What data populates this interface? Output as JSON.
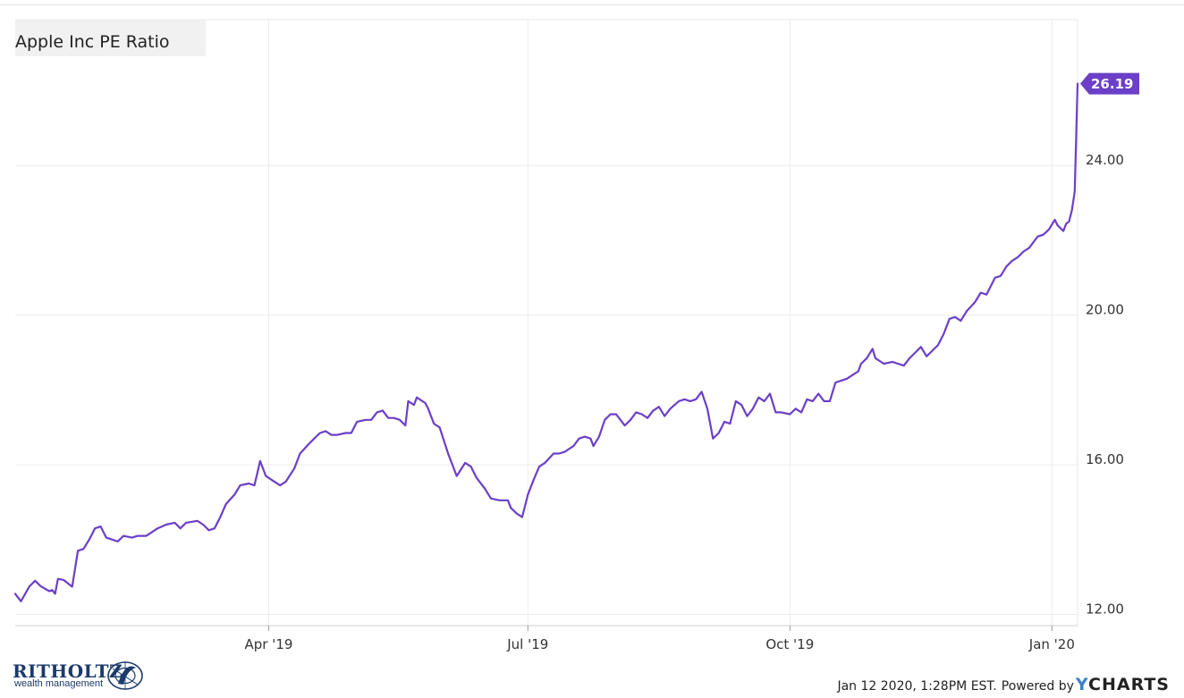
{
  "chart_data": {
    "type": "line",
    "title": "Apple Inc PE Ratio",
    "xlabel": "",
    "ylabel": "",
    "x_tick_labels": [
      {
        "date": "2019-04-01",
        "label": "Apr '19"
      },
      {
        "date": "2019-07-01",
        "label": "Jul '19"
      },
      {
        "date": "2019-10-01",
        "label": "Oct '19"
      },
      {
        "date": "2020-01-01",
        "label": "Jan '20"
      }
    ],
    "y_tick_labels": [
      "12.00",
      "16.00",
      "20.00",
      "24.00"
    ],
    "y_ticks": [
      12,
      16,
      20,
      24
    ],
    "xlim": [
      "2019-01-02",
      "2020-01-10"
    ],
    "ylim": [
      11.7,
      27.9
    ],
    "grid": true,
    "legend": "none",
    "last_value_label": "26.19",
    "series": [
      {
        "color": "#6b3fc7",
        "points": [
          [
            "2019-01-02",
            12.55
          ],
          [
            "2019-01-04",
            12.35
          ],
          [
            "2019-01-07",
            12.75
          ],
          [
            "2019-01-09",
            12.9
          ],
          [
            "2019-01-11",
            12.75
          ],
          [
            "2019-01-14",
            12.62
          ],
          [
            "2019-01-15",
            12.65
          ],
          [
            "2019-01-16",
            12.55
          ],
          [
            "2019-01-17",
            12.95
          ],
          [
            "2019-01-19",
            12.92
          ],
          [
            "2019-01-22",
            12.74
          ],
          [
            "2019-01-24",
            13.7
          ],
          [
            "2019-01-26",
            13.75
          ],
          [
            "2019-01-28",
            14.0
          ],
          [
            "2019-01-30",
            14.3
          ],
          [
            "2019-02-01",
            14.35
          ],
          [
            "2019-02-03",
            14.05
          ],
          [
            "2019-02-07",
            13.95
          ],
          [
            "2019-02-09",
            14.1
          ],
          [
            "2019-02-12",
            14.05
          ],
          [
            "2019-02-14",
            14.1
          ],
          [
            "2019-02-17",
            14.1
          ],
          [
            "2019-02-19",
            14.2
          ],
          [
            "2019-02-21",
            14.3
          ],
          [
            "2019-02-24",
            14.4
          ],
          [
            "2019-02-27",
            14.45
          ],
          [
            "2019-03-01",
            14.3
          ],
          [
            "2019-03-03",
            14.45
          ],
          [
            "2019-03-07",
            14.5
          ],
          [
            "2019-03-09",
            14.4
          ],
          [
            "2019-03-11",
            14.25
          ],
          [
            "2019-03-13",
            14.3
          ],
          [
            "2019-03-15",
            14.6
          ],
          [
            "2019-03-17",
            14.95
          ],
          [
            "2019-03-20",
            15.2
          ],
          [
            "2019-03-22",
            15.45
          ],
          [
            "2019-03-25",
            15.5
          ],
          [
            "2019-03-27",
            15.45
          ],
          [
            "2019-03-29",
            16.1
          ],
          [
            "2019-03-31",
            15.7
          ],
          [
            "2019-04-03",
            15.55
          ],
          [
            "2019-04-05",
            15.45
          ],
          [
            "2019-04-07",
            15.55
          ],
          [
            "2019-04-10",
            15.9
          ],
          [
            "2019-04-12",
            16.3
          ],
          [
            "2019-04-15",
            16.55
          ],
          [
            "2019-04-17",
            16.7
          ],
          [
            "2019-04-19",
            16.85
          ],
          [
            "2019-04-21",
            16.9
          ],
          [
            "2019-04-23",
            16.8
          ],
          [
            "2019-04-25",
            16.8
          ],
          [
            "2019-04-28",
            16.85
          ],
          [
            "2019-04-30",
            16.85
          ],
          [
            "2019-05-02",
            17.15
          ],
          [
            "2019-05-05",
            17.2
          ],
          [
            "2019-05-07",
            17.2
          ],
          [
            "2019-05-09",
            17.4
          ],
          [
            "2019-05-11",
            17.45
          ],
          [
            "2019-05-13",
            17.25
          ],
          [
            "2019-05-15",
            17.25
          ],
          [
            "2019-05-17",
            17.2
          ],
          [
            "2019-05-19",
            17.05
          ],
          [
            "2019-05-20",
            17.7
          ],
          [
            "2019-05-22",
            17.6
          ],
          [
            "2019-05-23",
            17.8
          ],
          [
            "2019-05-26",
            17.65
          ],
          [
            "2019-05-27",
            17.5
          ],
          [
            "2019-05-29",
            17.1
          ],
          [
            "2019-05-31",
            17.0
          ],
          [
            "2019-06-03",
            16.3
          ],
          [
            "2019-06-06",
            15.7
          ],
          [
            "2019-06-09",
            16.05
          ],
          [
            "2019-06-11",
            15.95
          ],
          [
            "2019-06-13",
            15.65
          ],
          [
            "2019-06-16",
            15.35
          ],
          [
            "2019-06-18",
            15.1
          ],
          [
            "2019-06-21",
            15.05
          ],
          [
            "2019-06-24",
            15.05
          ],
          [
            "2019-06-25",
            14.85
          ],
          [
            "2019-06-27",
            14.7
          ],
          [
            "2019-06-29",
            14.6
          ],
          [
            "2019-07-01",
            15.2
          ],
          [
            "2019-07-03",
            15.6
          ],
          [
            "2019-07-05",
            15.95
          ],
          [
            "2019-07-07",
            16.05
          ],
          [
            "2019-07-10",
            16.3
          ],
          [
            "2019-07-12",
            16.3
          ],
          [
            "2019-07-14",
            16.35
          ],
          [
            "2019-07-17",
            16.5
          ],
          [
            "2019-07-19",
            16.7
          ],
          [
            "2019-07-21",
            16.75
          ],
          [
            "2019-07-23",
            16.7
          ],
          [
            "2019-07-24",
            16.5
          ],
          [
            "2019-07-26",
            16.75
          ],
          [
            "2019-07-28",
            17.2
          ],
          [
            "2019-07-30",
            17.35
          ],
          [
            "2019-08-01",
            17.35
          ],
          [
            "2019-08-04",
            17.05
          ],
          [
            "2019-08-06",
            17.2
          ],
          [
            "2019-08-08",
            17.4
          ],
          [
            "2019-08-10",
            17.35
          ],
          [
            "2019-08-12",
            17.25
          ],
          [
            "2019-08-14",
            17.45
          ],
          [
            "2019-08-16",
            17.55
          ],
          [
            "2019-08-18",
            17.3
          ],
          [
            "2019-08-20",
            17.5
          ],
          [
            "2019-08-23",
            17.7
          ],
          [
            "2019-08-25",
            17.75
          ],
          [
            "2019-08-27",
            17.7
          ],
          [
            "2019-08-29",
            17.75
          ],
          [
            "2019-08-31",
            17.95
          ],
          [
            "2019-09-02",
            17.5
          ],
          [
            "2019-09-04",
            16.7
          ],
          [
            "2019-09-06",
            16.85
          ],
          [
            "2019-09-08",
            17.15
          ],
          [
            "2019-09-10",
            17.1
          ],
          [
            "2019-09-12",
            17.7
          ],
          [
            "2019-09-14",
            17.6
          ],
          [
            "2019-09-16",
            17.3
          ],
          [
            "2019-09-18",
            17.5
          ],
          [
            "2019-09-20",
            17.8
          ],
          [
            "2019-09-22",
            17.7
          ],
          [
            "2019-09-24",
            17.9
          ],
          [
            "2019-09-26",
            17.4
          ],
          [
            "2019-09-28",
            17.4
          ],
          [
            "2019-10-01",
            17.35
          ],
          [
            "2019-10-03",
            17.5
          ],
          [
            "2019-10-05",
            17.4
          ],
          [
            "2019-10-07",
            17.75
          ],
          [
            "2019-10-09",
            17.7
          ],
          [
            "2019-10-11",
            17.9
          ],
          [
            "2019-10-13",
            17.7
          ],
          [
            "2019-10-15",
            17.7
          ],
          [
            "2019-10-17",
            18.2
          ],
          [
            "2019-10-19",
            18.25
          ],
          [
            "2019-10-21",
            18.3
          ],
          [
            "2019-10-23",
            18.4
          ],
          [
            "2019-10-25",
            18.5
          ],
          [
            "2019-10-26",
            18.7
          ],
          [
            "2019-10-28",
            18.85
          ],
          [
            "2019-10-30",
            19.1
          ],
          [
            "2019-10-31",
            18.85
          ],
          [
            "2019-11-03",
            18.7
          ],
          [
            "2019-11-06",
            18.75
          ],
          [
            "2019-11-08",
            18.7
          ],
          [
            "2019-11-10",
            18.65
          ],
          [
            "2019-11-12",
            18.85
          ],
          [
            "2019-11-14",
            19.0
          ],
          [
            "2019-11-16",
            19.15
          ],
          [
            "2019-11-18",
            18.9
          ],
          [
            "2019-11-20",
            19.05
          ],
          [
            "2019-11-22",
            19.2
          ],
          [
            "2019-11-24",
            19.5
          ],
          [
            "2019-11-26",
            19.9
          ],
          [
            "2019-11-28",
            19.95
          ],
          [
            "2019-11-30",
            19.85
          ],
          [
            "2019-12-02",
            20.1
          ],
          [
            "2019-12-05",
            20.35
          ],
          [
            "2019-12-07",
            20.6
          ],
          [
            "2019-12-09",
            20.55
          ],
          [
            "2019-12-11",
            20.85
          ],
          [
            "2019-12-12",
            21.0
          ],
          [
            "2019-12-14",
            21.05
          ],
          [
            "2019-12-16",
            21.3
          ],
          [
            "2019-12-18",
            21.45
          ],
          [
            "2019-12-20",
            21.55
          ],
          [
            "2019-12-22",
            21.7
          ],
          [
            "2019-12-24",
            21.8
          ],
          [
            "2019-12-26",
            22.0
          ],
          [
            "2019-12-27",
            22.1
          ],
          [
            "2019-12-29",
            22.15
          ],
          [
            "2019-12-31",
            22.3
          ],
          [
            "2020-01-02",
            22.55
          ],
          [
            "2020-01-03",
            22.4
          ],
          [
            "2020-01-05",
            22.25
          ],
          [
            "2020-01-06",
            22.45
          ],
          [
            "2020-01-07",
            22.5
          ],
          [
            "2020-01-08",
            22.8
          ],
          [
            "2020-01-09",
            23.3
          ],
          [
            "2020-01-10",
            26.19
          ]
        ]
      }
    ]
  },
  "footer": {
    "timestamp_text": "Jan 12 2020, 1:28PM EST.",
    "powered_by": "Powered by",
    "brand_y": "Y",
    "brand_rest": "CHARTS"
  },
  "logo": {
    "wordmark": "RITHOLTZ",
    "tagline": "wealth management"
  }
}
